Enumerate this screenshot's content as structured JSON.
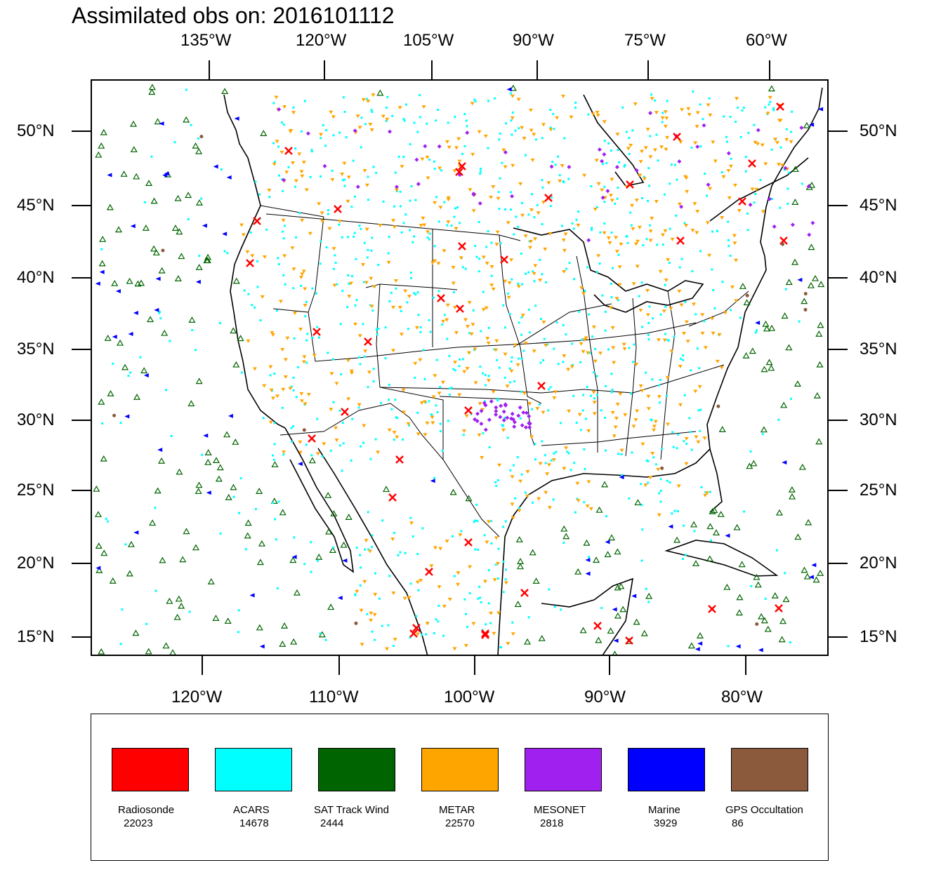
{
  "title": "Assimilated obs on: 2016101112",
  "top_lon_labels": [
    "135°W",
    "120°W",
    "105°W",
    "90°W",
    "75°W",
    "60°W"
  ],
  "bottom_lon_labels": [
    "120°W",
    "110°W",
    "100°W",
    "90°W",
    "80°W"
  ],
  "lat_labels": [
    "50°N",
    "45°N",
    "40°N",
    "35°N",
    "30°N",
    "25°N",
    "20°N",
    "15°N"
  ],
  "legend": [
    {
      "name": "Radiosonde",
      "count": "22023",
      "color": "#ff0000",
      "symbol": "x-mark-icon"
    },
    {
      "name": "ACARS",
      "count": "14678",
      "color": "#00ffff",
      "symbol": "square-dot-icon"
    },
    {
      "name": "SAT Track Wind",
      "count": "2444",
      "color": "#006400",
      "symbol": "triangle-icon"
    },
    {
      "name": "METAR",
      "count": "22570",
      "color": "#ffa500",
      "symbol": "triangle-down-icon"
    },
    {
      "name": "MESONET",
      "count": "2818",
      "color": "#a020f0",
      "symbol": "diamond-icon"
    },
    {
      "name": "Marine",
      "count": "3929",
      "color": "#0000ff",
      "symbol": "triangle-left-icon"
    },
    {
      "name": "GPS Occultation",
      "count": "86",
      "color": "#8b5a3c",
      "symbol": "dot-icon"
    }
  ]
}
